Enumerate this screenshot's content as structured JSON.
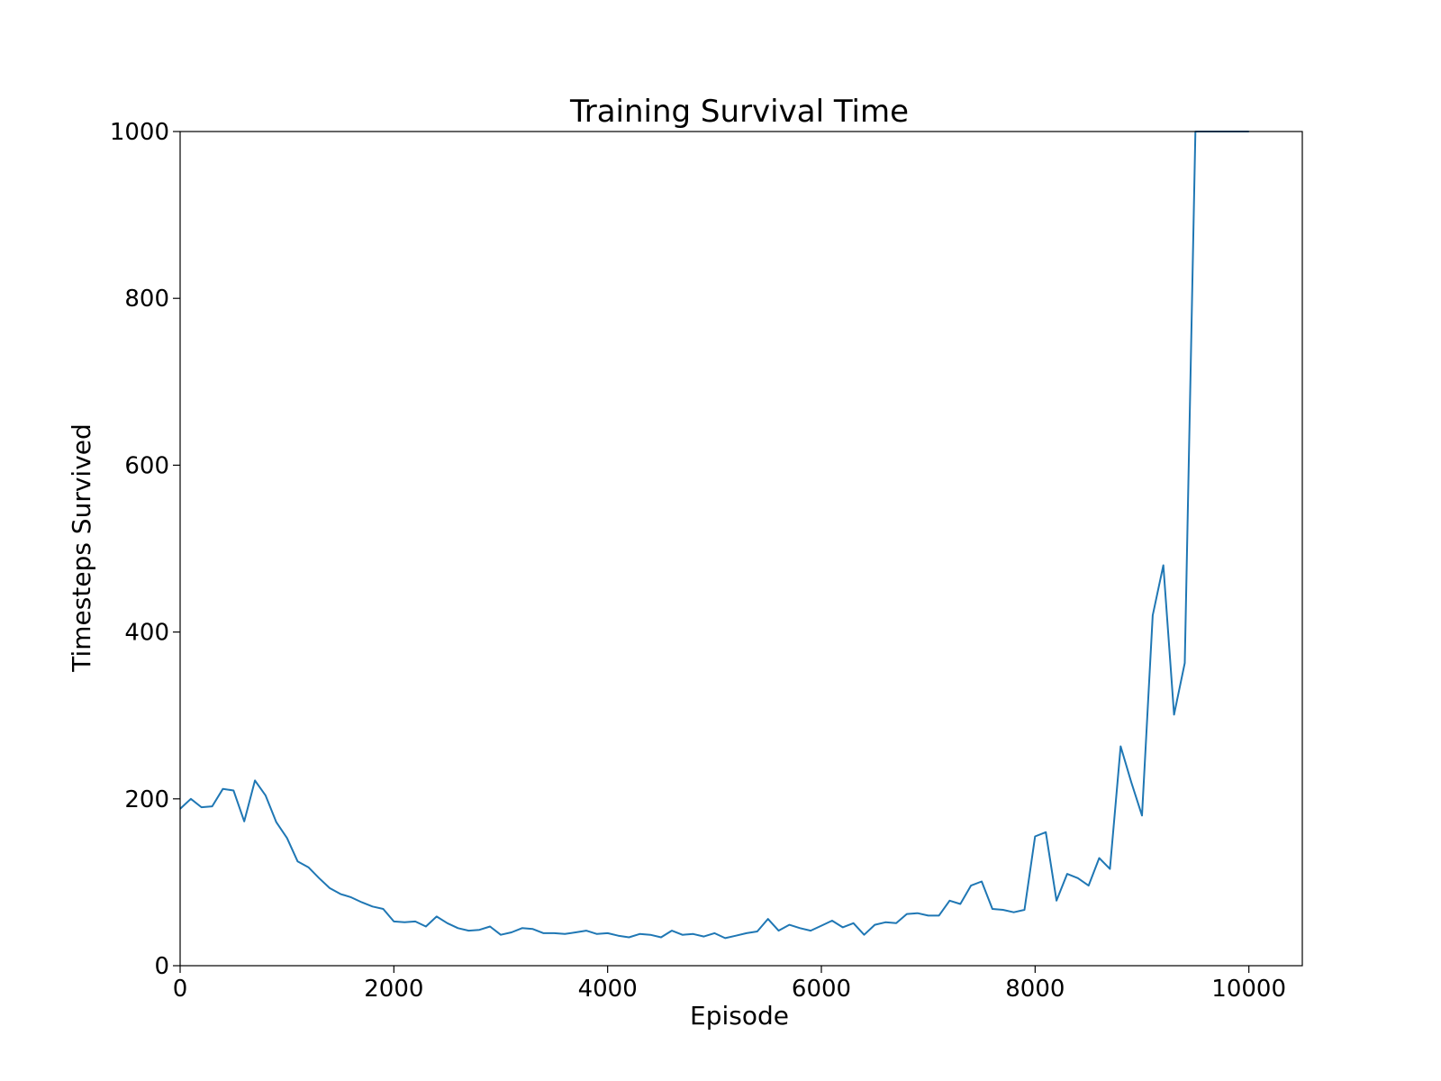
{
  "chart_data": {
    "type": "line",
    "title": "Training Survival Time",
    "xlabel": "Episode",
    "ylabel": "Timesteps Survived",
    "xlim": [
      0,
      10500
    ],
    "ylim": [
      0,
      1000
    ],
    "grid": false,
    "x_ticks": [
      0,
      2000,
      4000,
      6000,
      8000,
      10000
    ],
    "y_ticks": [
      0,
      200,
      400,
      600,
      800,
      1000
    ],
    "series": [
      {
        "color": "#1f77b4",
        "x": [
          0,
          100,
          200,
          300,
          400,
          500,
          600,
          700,
          800,
          900,
          1000,
          1100,
          1200,
          1300,
          1400,
          1500,
          1600,
          1700,
          1800,
          1900,
          2000,
          2100,
          2200,
          2300,
          2400,
          2500,
          2600,
          2700,
          2800,
          2900,
          3000,
          3100,
          3200,
          3300,
          3400,
          3500,
          3600,
          3700,
          3800,
          3900,
          4000,
          4100,
          4200,
          4300,
          4400,
          4500,
          4600,
          4700,
          4800,
          4900,
          5000,
          5100,
          5200,
          5300,
          5400,
          5500,
          5600,
          5700,
          5800,
          5900,
          6000,
          6100,
          6200,
          6300,
          6400,
          6500,
          6600,
          6700,
          6800,
          6900,
          7000,
          7100,
          7200,
          7300,
          7400,
          7500,
          7600,
          7700,
          7800,
          7900,
          8000,
          8100,
          8200,
          8300,
          8400,
          8500,
          8600,
          8700,
          8800,
          8900,
          9000,
          9100,
          9200,
          9300,
          9400,
          9500,
          9600,
          9700,
          9800,
          9900,
          10000
        ],
        "y": [
          188,
          200,
          190,
          191,
          212,
          210,
          173,
          222,
          204,
          172,
          153,
          125,
          118,
          105,
          93,
          86,
          82,
          76,
          71,
          68,
          53,
          52,
          53,
          47,
          59,
          51,
          45,
          42,
          43,
          47,
          37,
          40,
          45,
          44,
          39,
          39,
          38,
          40,
          42,
          38,
          39,
          36,
          34,
          38,
          37,
          34,
          42,
          37,
          38,
          35,
          39,
          33,
          36,
          39,
          41,
          56,
          42,
          49,
          45,
          42,
          48,
          54,
          46,
          51,
          37,
          49,
          52,
          51,
          62,
          63,
          60,
          60,
          78,
          74,
          96,
          101,
          68,
          67,
          64,
          67,
          155,
          160,
          78,
          110,
          105,
          96,
          129,
          116,
          263,
          220,
          180,
          420,
          480,
          301,
          363,
          1000,
          1000,
          1000,
          1000,
          1000,
          1000
        ]
      }
    ]
  }
}
